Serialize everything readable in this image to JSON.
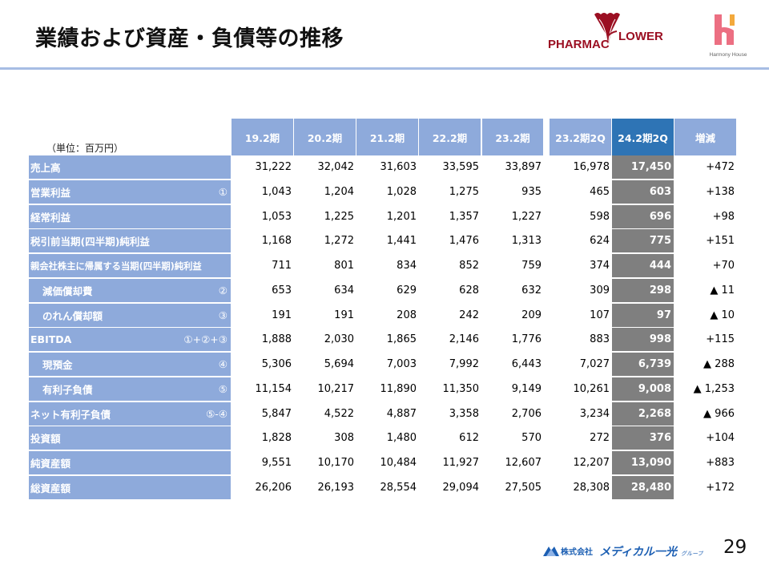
{
  "header": {
    "title": "業績および資産・負債等の推移",
    "logos": [
      {
        "name": "pharmacy-flower-logo",
        "text_left": "PHARMAC",
        "text_right": "LOWER"
      },
      {
        "name": "harmony-house-logo",
        "text": "Harmony House"
      }
    ]
  },
  "table": {
    "unit": "（単位：百万円）",
    "columns": [
      "19.2期",
      "20.2期",
      "21.2期",
      "22.2期",
      "23.2期",
      "23.2期2Q",
      "24.2期2Q",
      "増減"
    ],
    "highlight_column": "24.2期2Q",
    "rows": [
      {
        "label": "売上高",
        "mark": "",
        "values": [
          "31,222",
          "32,042",
          "31,603",
          "33,595",
          "33,897",
          "16,978",
          "17,450",
          "+472"
        ]
      },
      {
        "label": "営業利益",
        "mark": "①",
        "values": [
          "1,043",
          "1,204",
          "1,028",
          "1,275",
          "935",
          "465",
          "603",
          "+138"
        ]
      },
      {
        "label": "経常利益",
        "mark": "",
        "values": [
          "1,053",
          "1,225",
          "1,201",
          "1,357",
          "1,227",
          "598",
          "696",
          "+98"
        ]
      },
      {
        "label": "税引前当期(四半期)純利益",
        "mark": "",
        "values": [
          "1,168",
          "1,272",
          "1,441",
          "1,476",
          "1,313",
          "624",
          "775",
          "+151"
        ]
      },
      {
        "label": "親会社株主に帰属する当期(四半期)純利益",
        "mark": "",
        "values": [
          "711",
          "801",
          "834",
          "852",
          "759",
          "374",
          "444",
          "+70"
        ]
      },
      {
        "label": "減価償却費",
        "mark": "②",
        "indent": true,
        "values": [
          "653",
          "634",
          "629",
          "628",
          "632",
          "309",
          "298",
          "▲ 11"
        ]
      },
      {
        "label": "のれん償却額",
        "mark": "③",
        "indent": true,
        "values": [
          "191",
          "191",
          "208",
          "242",
          "209",
          "107",
          "97",
          "▲ 10"
        ]
      },
      {
        "label": "EBITDA",
        "mark": "①+②+③",
        "values": [
          "1,888",
          "2,030",
          "1,865",
          "2,146",
          "1,776",
          "883",
          "998",
          "+115"
        ]
      },
      {
        "label": "現預金",
        "mark": "④",
        "indent": true,
        "values": [
          "5,306",
          "5,694",
          "7,003",
          "7,992",
          "6,443",
          "7,027",
          "6,739",
          "▲ 288"
        ]
      },
      {
        "label": "有利子負債",
        "mark": "⑤",
        "indent": true,
        "values": [
          "11,154",
          "10,217",
          "11,890",
          "11,350",
          "9,149",
          "10,261",
          "9,008",
          "▲ 1,253"
        ]
      },
      {
        "label": "ネット有利子負債",
        "mark": "⑤-④",
        "values": [
          "5,847",
          "4,522",
          "4,887",
          "3,358",
          "2,706",
          "3,234",
          "2,268",
          "▲ 966"
        ]
      },
      {
        "label": "投資額",
        "mark": "",
        "values": [
          "1,828",
          "308",
          "1,480",
          "612",
          "570",
          "272",
          "376",
          "+104"
        ]
      },
      {
        "label": "純資産額",
        "mark": "",
        "values": [
          "9,551",
          "10,170",
          "10,484",
          "11,927",
          "12,607",
          "12,207",
          "13,090",
          "+883"
        ]
      },
      {
        "label": "総資産額",
        "mark": "",
        "values": [
          "26,206",
          "26,193",
          "28,554",
          "29,094",
          "27,505",
          "28,308",
          "28,480",
          "+172"
        ]
      }
    ]
  },
  "footer": {
    "company": "株式会社",
    "brand": "メディカル一光",
    "group": "グループ",
    "page_number": "29"
  },
  "colors": {
    "header_bg": "#8eaadb",
    "highlight_header_bg": "#2e74b5",
    "highlight_column_bg": "#7f7f7f",
    "rule": "#a7bde4",
    "logo_red": "#9b0f22",
    "logo_pink": "#ec6f82",
    "logo_orange": "#f3a93c",
    "footer_blue": "#1c5fb3"
  }
}
